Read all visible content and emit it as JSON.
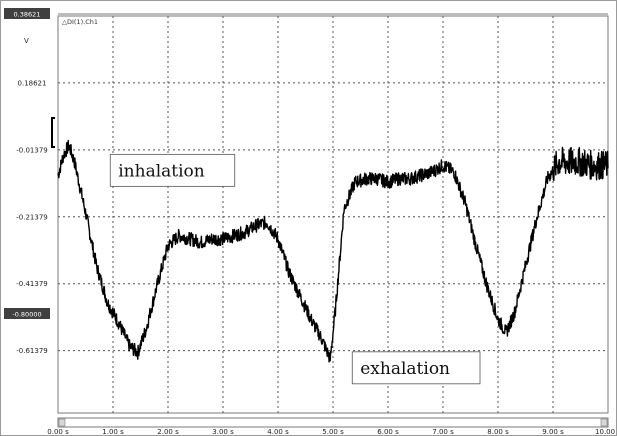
{
  "channel_label": "△DI(1).Ch1",
  "colors": {
    "trace": "#000000",
    "grid": "#555555",
    "badge": "#404040",
    "frame": "#9a9a9a"
  },
  "chart_data": {
    "type": "line",
    "title": "",
    "xlabel": "",
    "ylabel": "V",
    "xlim": [
      0,
      10
    ],
    "ylim": [
      -0.8,
      0.38621
    ],
    "top_marker": "0.38621",
    "bottom_marker": "-0.80000",
    "x_ticks": [
      "0.00 s",
      "1.00 s",
      "2.00 s",
      "3.00 s",
      "4.00 s",
      "5.00 s",
      "6.00 s",
      "7.00 s",
      "8.00 s",
      "9.00 s",
      "10.00 s"
    ],
    "y_ticks": [
      {
        "value": 0.18621,
        "label": "0.18621"
      },
      {
        "value": -0.01379,
        "label": "-0.01379"
      },
      {
        "value": -0.21379,
        "label": "-0.21379"
      },
      {
        "value": -0.41379,
        "label": "-0.41379"
      },
      {
        "value": -0.61379,
        "label": "-0.61379"
      }
    ],
    "series": [
      {
        "x": [
          0.0,
          0.1,
          0.2,
          0.3,
          0.5,
          0.7,
          0.9,
          1.1,
          1.3,
          1.45,
          1.6,
          1.8,
          2.0,
          2.2,
          2.4,
          2.6,
          2.8,
          3.0,
          3.2,
          3.4,
          3.6,
          3.8,
          4.0,
          4.2,
          4.4,
          4.6,
          4.8,
          4.95,
          5.05,
          5.2,
          5.4,
          5.6,
          5.8,
          6.0,
          6.2,
          6.4,
          6.6,
          6.8,
          7.0,
          7.2,
          7.4,
          7.6,
          7.8,
          8.0,
          8.15,
          8.3,
          8.5,
          8.7,
          8.9,
          9.1,
          9.3,
          9.5,
          9.7,
          9.9,
          10.0
        ],
        "y": [
          -0.09,
          -0.03,
          0.0,
          -0.05,
          -0.2,
          -0.36,
          -0.47,
          -0.53,
          -0.6,
          -0.62,
          -0.55,
          -0.42,
          -0.3,
          -0.27,
          -0.28,
          -0.29,
          -0.28,
          -0.28,
          -0.27,
          -0.26,
          -0.24,
          -0.23,
          -0.28,
          -0.38,
          -0.45,
          -0.52,
          -0.58,
          -0.64,
          -0.48,
          -0.19,
          -0.11,
          -0.1,
          -0.1,
          -0.11,
          -0.1,
          -0.1,
          -0.09,
          -0.08,
          -0.06,
          -0.08,
          -0.17,
          -0.3,
          -0.42,
          -0.52,
          -0.56,
          -0.5,
          -0.36,
          -0.22,
          -0.1,
          -0.05,
          -0.05,
          -0.05,
          -0.06,
          -0.06,
          -0.06
        ],
        "noise": 0.02
      }
    ],
    "annotations": [
      {
        "text": "inhalation",
        "x": 0.95,
        "y": -0.075
      },
      {
        "text": "exhalation",
        "x": 5.35,
        "y": -0.665
      }
    ]
  }
}
